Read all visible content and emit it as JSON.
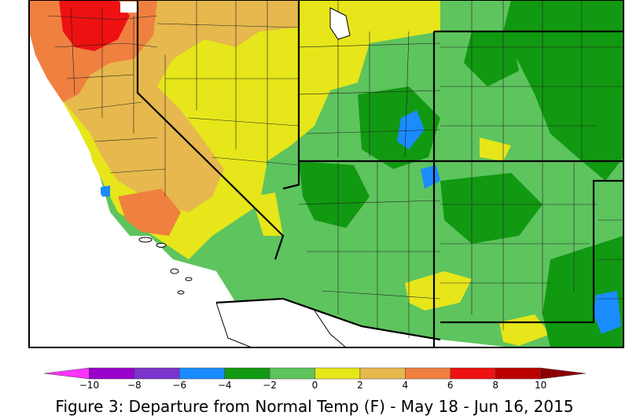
{
  "caption": "Figure 3: Departure from Normal Temp (F) - May 18 - Jun 16, 2015",
  "legend": {
    "tick_labels": [
      "−10",
      "−8",
      "−6",
      "−4",
      "−2",
      "0",
      "2",
      "4",
      "6",
      "8",
      "10"
    ],
    "bins": [
      {
        "from": -12,
        "to": -10,
        "color": "#ff33ff"
      },
      {
        "from": -10,
        "to": -8,
        "color": "#9900cc"
      },
      {
        "from": -8,
        "to": -6,
        "color": "#7a33cc"
      },
      {
        "from": -6,
        "to": -4,
        "color": "#1a8cff"
      },
      {
        "from": -4,
        "to": -2,
        "color": "#119911"
      },
      {
        "from": -2,
        "to": 0,
        "color": "#5ec45e"
      },
      {
        "from": 0,
        "to": 2,
        "color": "#e6e61a"
      },
      {
        "from": 2,
        "to": 4,
        "color": "#e6b84d"
      },
      {
        "from": 4,
        "to": 6,
        "color": "#f08040"
      },
      {
        "from": 6,
        "to": 8,
        "color": "#ee1111"
      },
      {
        "from": 8,
        "to": 10,
        "color": "#bb0000"
      },
      {
        "from": 10,
        "to": 12,
        "color": "#8b0000"
      }
    ]
  },
  "colors": {
    "frame": "#000000",
    "no_data": "#ffffff",
    "state_line": "#000000",
    "county_line": "#222222"
  }
}
